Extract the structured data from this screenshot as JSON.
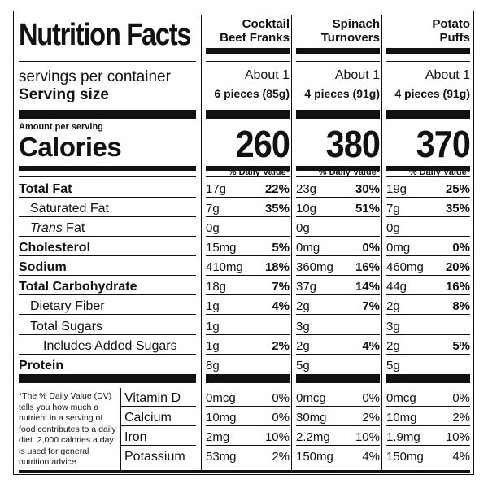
{
  "title": "Nutrition Facts",
  "servings_label": "servings per container",
  "serving_size_label": "Serving size",
  "amount_per_serving": "Amount per serving",
  "calories_label": "Calories",
  "dv_header": "% Daily Value*",
  "products": [
    {
      "name_line1": "Cocktail",
      "name_line2": "Beef Franks",
      "servings": "About 1",
      "serving_size": "6 pieces (85g)",
      "calories": "260",
      "total_fat": {
        "amount": "17g",
        "dv": "22%"
      },
      "saturated_fat": {
        "amount": "7g",
        "dv": "35%"
      },
      "trans_fat": {
        "amount": "0g"
      },
      "cholesterol": {
        "amount": "15mg",
        "dv": "5%"
      },
      "sodium": {
        "amount": "410mg",
        "dv": "18%"
      },
      "total_carbohydrate": {
        "amount": "18g",
        "dv": "7%"
      },
      "dietary_fiber": {
        "amount": "1g",
        "dv": "4%"
      },
      "total_sugars": {
        "amount": "1g"
      },
      "added_sugars": {
        "amount": "1g",
        "dv": "2%"
      },
      "protein": {
        "amount": "8g"
      },
      "vitamin_d": {
        "amount": "0mcg",
        "dv": "0%"
      },
      "calcium": {
        "amount": "10mg",
        "dv": "0%"
      },
      "iron": {
        "amount": "2mg",
        "dv": "10%"
      },
      "potassium": {
        "amount": "53mg",
        "dv": "2%"
      }
    },
    {
      "name_line1": "Spinach",
      "name_line2": "Turnovers",
      "servings": "About 1",
      "serving_size": "4 pieces (91g)",
      "calories": "380",
      "total_fat": {
        "amount": "23g",
        "dv": "30%"
      },
      "saturated_fat": {
        "amount": "10g",
        "dv": "51%"
      },
      "trans_fat": {
        "amount": "0g"
      },
      "cholesterol": {
        "amount": "0mg",
        "dv": "0%"
      },
      "sodium": {
        "amount": "360mg",
        "dv": "16%"
      },
      "total_carbohydrate": {
        "amount": "37g",
        "dv": "14%"
      },
      "dietary_fiber": {
        "amount": "2g",
        "dv": "7%"
      },
      "total_sugars": {
        "amount": "3g"
      },
      "added_sugars": {
        "amount": "2g",
        "dv": "4%"
      },
      "protein": {
        "amount": "5g"
      },
      "vitamin_d": {
        "amount": "0mcg",
        "dv": "0%"
      },
      "calcium": {
        "amount": "30mg",
        "dv": "2%"
      },
      "iron": {
        "amount": "2.2mg",
        "dv": "10%"
      },
      "potassium": {
        "amount": "150mg",
        "dv": "4%"
      }
    },
    {
      "name_line1": "Potato",
      "name_line2": "Puffs",
      "servings": "About 1",
      "serving_size": "4 pieces (91g)",
      "calories": "370",
      "total_fat": {
        "amount": "19g",
        "dv": "25%"
      },
      "saturated_fat": {
        "amount": "7g",
        "dv": "35%"
      },
      "trans_fat": {
        "amount": "0g"
      },
      "cholesterol": {
        "amount": "0mg",
        "dv": "0%"
      },
      "sodium": {
        "amount": "460mg",
        "dv": "20%"
      },
      "total_carbohydrate": {
        "amount": "44g",
        "dv": "16%"
      },
      "dietary_fiber": {
        "amount": "2g",
        "dv": "8%"
      },
      "total_sugars": {
        "amount": "3g"
      },
      "added_sugars": {
        "amount": "2g",
        "dv": "5%"
      },
      "protein": {
        "amount": "5g"
      },
      "vitamin_d": {
        "amount": "0mcg",
        "dv": "0%"
      },
      "calcium": {
        "amount": "10mg",
        "dv": "2%"
      },
      "iron": {
        "amount": "1.9mg",
        "dv": "10%"
      },
      "potassium": {
        "amount": "150mg",
        "dv": "4%"
      }
    }
  ],
  "nutrients": {
    "total_fat": "Total Fat",
    "saturated_fat": "Saturated Fat",
    "trans_fat_italic": "Trans",
    "trans_fat_rest": " Fat",
    "cholesterol": "Cholesterol",
    "sodium": "Sodium",
    "total_carbohydrate": "Total Carbohydrate",
    "dietary_fiber": "Dietary Fiber",
    "total_sugars": "Total Sugars",
    "added_sugars": "Includes Added Sugars",
    "protein": "Protein",
    "vitamin_d": "Vitamin D",
    "calcium": "Calcium",
    "iron": "Iron",
    "potassium": "Potassium"
  },
  "footnote": "*The % Daily Value (DV) tells you how much a nutrient in a serving of food contributes to a daily diet. 2,000 calories a day is used for general nutrition advice."
}
